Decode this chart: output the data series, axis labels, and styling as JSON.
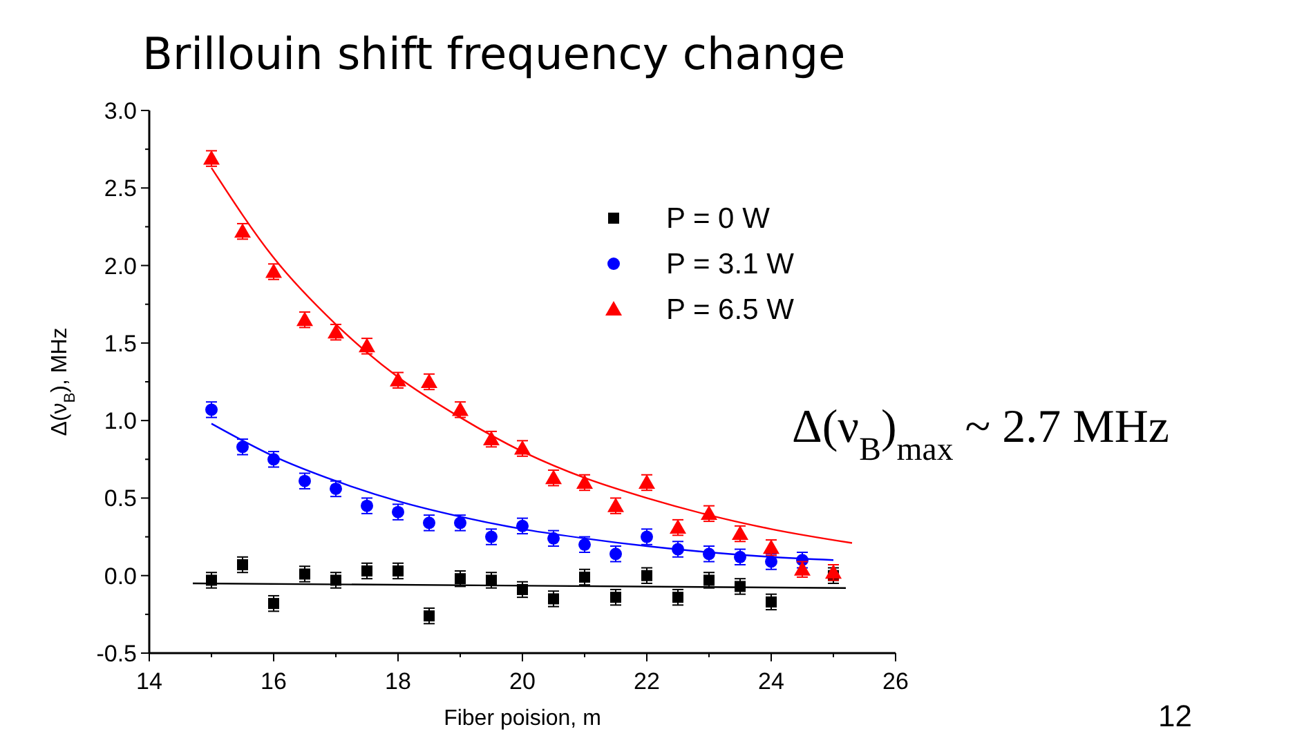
{
  "chart_data": {
    "type": "scatter",
    "title": "Brillouin shift frequency change",
    "xlabel": "Fiber poision, m",
    "ylabel": "Δ(ν$_{B}$), MHz",
    "annotations": [
      "Δ(ν$_{B}$)$_{max}$ ~ 2.7 MHz",
      "12"
    ],
    "xlim": [
      14,
      26
    ],
    "xticks": [
      14,
      16,
      18,
      20,
      22,
      24,
      26
    ],
    "ylim": [
      -0.5,
      3.0
    ],
    "yticks": [
      {
        "value": -0.5,
        "label": "-0.5"
      },
      {
        "value": 0,
        "label": "0.0"
      },
      {
        "value": 0.5,
        "label": "0.5"
      },
      {
        "value": 1,
        "label": "1.0"
      },
      {
        "value": 1.5,
        "label": "1.5"
      },
      {
        "value": 2,
        "label": "2.0"
      },
      {
        "value": 2.5,
        "label": "2.5"
      },
      {
        "value": 3,
        "label": "3.0"
      }
    ],
    "grid": false,
    "legend": "top right",
    "x": [
      15,
      15.5,
      16,
      16.5,
      17,
      17.5,
      18,
      18.5,
      19,
      19.5,
      20,
      20.5,
      21,
      21.5,
      22,
      22.5,
      23,
      23.5,
      24,
      24.5,
      25
    ],
    "series": [
      {
        "name": "P = 0 W",
        "color": "#000000",
        "marker": "square",
        "errors": [
          0.05,
          0.05,
          0.05,
          0.05,
          0.05,
          0.05,
          0.05,
          0.05,
          0.05,
          0.05,
          0.05,
          0.05,
          0.05,
          0.05,
          0.05,
          0.05,
          0.05,
          0.05,
          0.05,
          null,
          0.05
        ],
        "values": [
          -0.03,
          0.07,
          -0.18,
          0.01,
          -0.03,
          0.03,
          0.03,
          -0.26,
          -0.02,
          -0.03,
          -0.09,
          -0.15,
          -0.01,
          -0.14,
          0.0,
          -0.14,
          -0.03,
          -0.07,
          -0.17,
          null,
          0.0
        ]
      },
      {
        "name": "P = 3.1 W",
        "color": "#0000ff",
        "marker": "circle",
        "errors": [
          0.05,
          0.05,
          0.05,
          0.05,
          0.05,
          0.05,
          0.05,
          0.05,
          0.05,
          0.05,
          0.05,
          0.05,
          0.05,
          0.05,
          0.05,
          0.05,
          0.05,
          0.05,
          0.05,
          0.05,
          null
        ],
        "values": [
          1.07,
          0.83,
          0.75,
          0.61,
          0.56,
          0.45,
          0.41,
          0.34,
          0.34,
          0.25,
          0.32,
          0.24,
          0.2,
          0.14,
          0.25,
          0.17,
          0.14,
          0.12,
          0.09,
          0.1,
          null
        ]
      },
      {
        "name": "P = 6.5 W",
        "color": "#ff0000",
        "marker": "triangle",
        "errors": [
          0.05,
          0.05,
          0.05,
          0.05,
          0.05,
          0.05,
          0.05,
          0.05,
          0.05,
          0.05,
          0.05,
          0.05,
          0.05,
          0.05,
          0.05,
          0.05,
          0.05,
          0.05,
          0.05,
          0.05,
          0.05
        ],
        "values": [
          2.69,
          2.22,
          1.96,
          1.65,
          1.57,
          1.48,
          1.26,
          1.25,
          1.07,
          0.88,
          0.82,
          0.63,
          0.6,
          0.45,
          0.6,
          0.31,
          0.4,
          0.27,
          0.18,
          0.04,
          0.02
        ]
      },
      {
        "type": "line",
        "color": "#000000",
        "x": [
          14.7,
          25.2
        ],
        "values": [
          -0.05,
          -0.08
        ]
      },
      {
        "type": "line",
        "color": "#0000ff",
        "x": [
          15,
          16,
          17,
          18,
          19,
          20,
          21,
          22,
          23,
          24,
          25
        ],
        "values": [
          0.98,
          0.77,
          0.61,
          0.48,
          0.38,
          0.3,
          0.24,
          0.19,
          0.15,
          0.12,
          0.1
        ]
      },
      {
        "type": "line",
        "color": "#ff0000",
        "x": [
          15,
          16,
          17,
          18,
          19,
          20,
          21,
          22,
          23,
          24,
          25.3
        ],
        "values": [
          2.63,
          2.05,
          1.62,
          1.28,
          1.02,
          0.8,
          0.63,
          0.5,
          0.39,
          0.3,
          0.21
        ]
      }
    ]
  }
}
